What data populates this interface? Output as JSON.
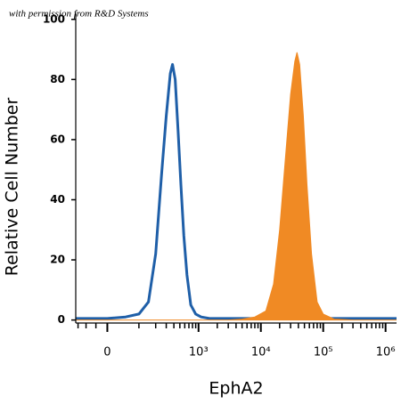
{
  "chart_data": {
    "type": "histogram-overlay",
    "annotation": "with permission from R&D Systems",
    "xlabel": "EphA2",
    "ylabel": "Relative Cell Number",
    "xscale": "biexponential",
    "xlim": [
      -100,
      1500000
    ],
    "ylim": [
      -1,
      102
    ],
    "xticks": [
      0,
      {
        "value": 1000,
        "label": "10³"
      },
      {
        "value": 10000,
        "label": "10⁴"
      },
      {
        "value": 100000,
        "label": "10⁵"
      },
      {
        "value": 1000000,
        "label": "10⁶"
      }
    ],
    "xminorticks": [
      -90,
      -60,
      -30,
      100,
      200,
      300,
      400,
      500,
      600,
      700,
      800,
      900,
      2000,
      3000,
      4000,
      5000,
      6000,
      7000,
      8000,
      9000,
      20000,
      30000,
      40000,
      50000,
      60000,
      70000,
      80000,
      90000,
      200000,
      300000,
      400000,
      500000,
      600000,
      700000,
      800000,
      900000
    ],
    "yticks": [
      0,
      20,
      40,
      60,
      80,
      100
    ],
    "x": [
      -100,
      -50,
      0,
      50,
      100,
      150,
      200,
      250,
      300,
      350,
      380,
      420,
      470,
      520,
      580,
      650,
      750,
      900,
      1100,
      1500,
      2000,
      3000,
      5000,
      8000,
      12000,
      16000,
      20000,
      25000,
      30000,
      35000,
      38000,
      42000,
      48000,
      55000,
      65000,
      80000,
      100000,
      150000,
      300000,
      1000000,
      1500000
    ],
    "series": [
      {
        "color": "#1f5fa8",
        "fill": false,
        "values": [
          0.5,
          0.5,
          0.5,
          1,
          2,
          6,
          22,
          48,
          68,
          82,
          85,
          80,
          62,
          45,
          28,
          15,
          5,
          2,
          1,
          0.5,
          0.5,
          0.5,
          0.5,
          0.5,
          0.5,
          0.5,
          0.5,
          0.5,
          0.5,
          0.5,
          0.5,
          0.5,
          0.5,
          0.5,
          0.5,
          0.5,
          0.5,
          0.5,
          0.5,
          0.5,
          0.5
        ]
      },
      {
        "color": "#f08a24",
        "fill": true,
        "values": [
          0,
          0,
          0,
          0,
          0,
          0,
          0,
          0,
          0,
          0,
          0,
          0,
          0,
          0,
          0,
          0,
          0,
          0,
          0,
          0,
          0,
          0,
          0.3,
          1,
          3,
          12,
          30,
          55,
          75,
          86,
          89,
          85,
          68,
          45,
          22,
          6,
          2,
          0.3,
          0,
          0,
          0
        ]
      }
    ]
  }
}
